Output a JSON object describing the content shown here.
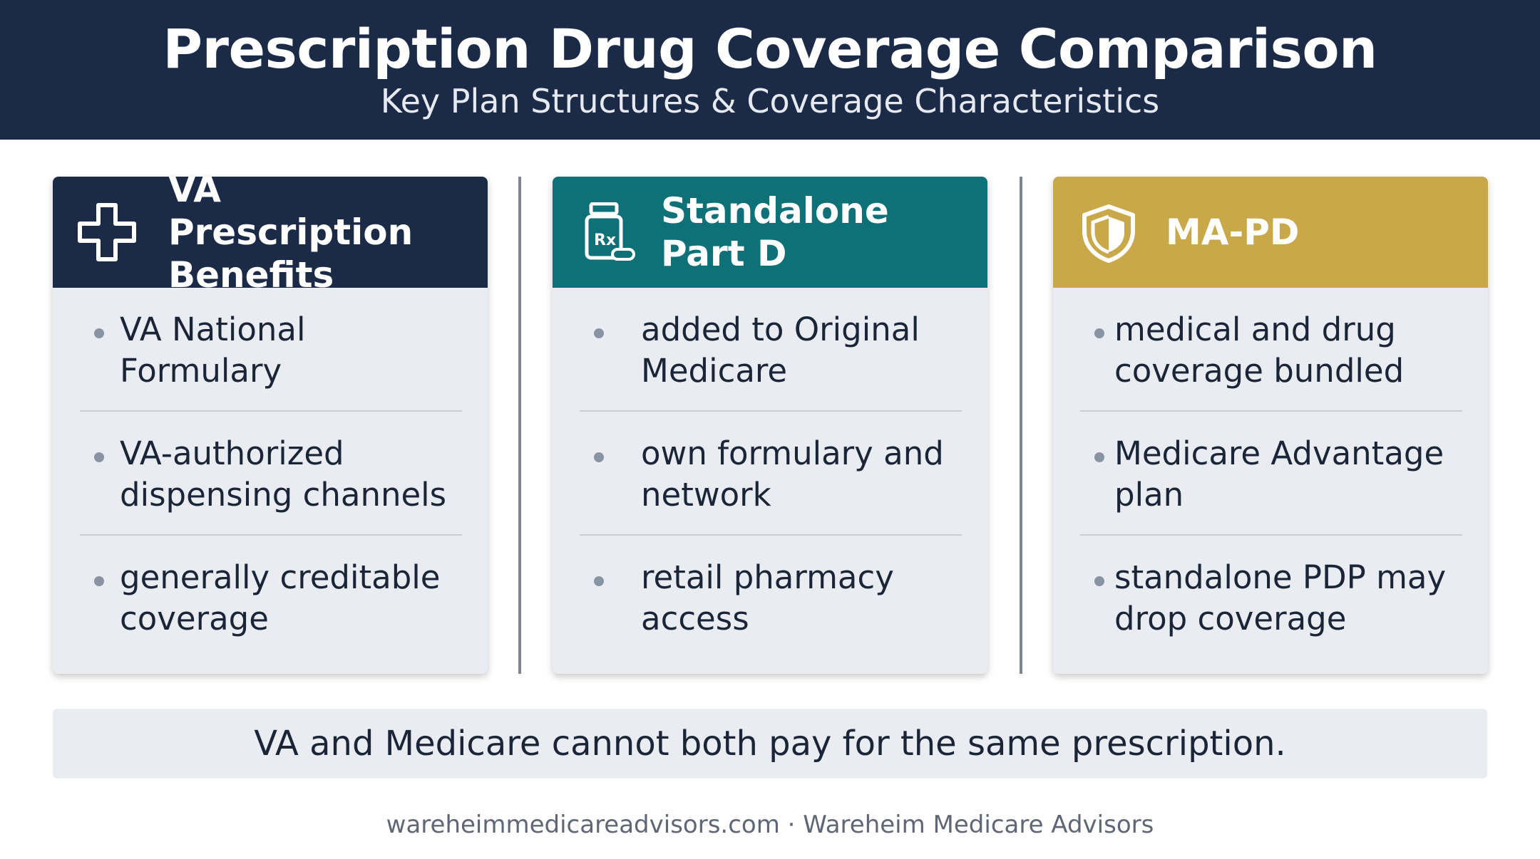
{
  "header": {
    "title": "Prescription Drug Coverage Comparison",
    "subtitle": "Key Plan Structures & Coverage Characteristics"
  },
  "cards": [
    {
      "title": "VA Prescription Benefits",
      "icon": "medical-cross-icon",
      "color": "#1a2a47",
      "bullets": [
        "VA National Formulary",
        "VA-authorized dispensing channels",
        "generally creditable coverage"
      ]
    },
    {
      "title": "Standalone Part D",
      "icon": "prescription-bottle-icon",
      "color": "#0d7177",
      "bullets": [
        "added to Original Medicare",
        "own formulary and network",
        "retail pharmacy access"
      ]
    },
    {
      "title": "MA-PD",
      "icon": "shield-icon",
      "color": "#c9a849",
      "bullets": [
        "medical and drug coverage bundled",
        "Medicare Advantage plan",
        "standalone PDP may drop coverage"
      ]
    }
  ],
  "note": "VA and Medicare cannot both pay for the same prescription.",
  "footer": "wareheimmedicareadvisors.com · Wareheim Medicare Advisors"
}
